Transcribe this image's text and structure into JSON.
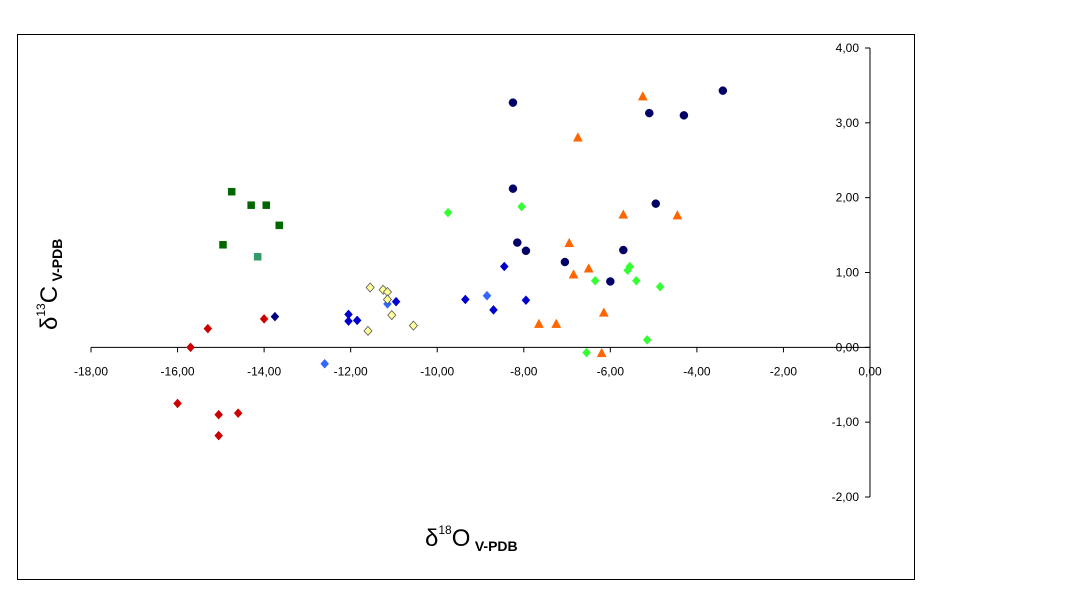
{
  "chart_data": {
    "type": "scatter",
    "title": "",
    "xlabel": {
      "symbol": "δ",
      "sup": "18",
      "element": "O",
      "sub": "V-PDB"
    },
    "ylabel": {
      "symbol": "δ",
      "sup": "13",
      "element": "C",
      "sub": "V-PDB"
    },
    "xlim": [
      -18,
      0
    ],
    "ylim": [
      -2,
      4
    ],
    "x_ticks": [
      -18,
      -16,
      -14,
      -12,
      -10,
      -8,
      -6,
      -4,
      -2,
      0
    ],
    "y_ticks": [
      -2,
      -1,
      0,
      1,
      2,
      3,
      4
    ],
    "x_tick_labels": [
      "-18,00",
      "-16,00",
      "-14,00",
      "-12,00",
      "-10,00",
      "-8,00",
      "-6,00",
      "-4,00",
      "-2,00",
      "0,00"
    ],
    "y_tick_labels": [
      "-2,00",
      "-1,00",
      "0,00",
      "1,00",
      "2,00",
      "3,00",
      "4,00"
    ],
    "grid": false,
    "legend": "none",
    "series": [
      {
        "marker": "square",
        "color": "#006600",
        "points": [
          [
            -14.75,
            2.08
          ],
          [
            -14.3,
            1.9
          ],
          [
            -13.95,
            1.9
          ],
          [
            -13.65,
            1.63
          ],
          [
            -14.95,
            1.37
          ]
        ]
      },
      {
        "marker": "square",
        "color": "#339966",
        "points": [
          [
            -14.15,
            1.21
          ]
        ]
      },
      {
        "marker": "diamond",
        "color": "#cc0000",
        "points": [
          [
            -15.3,
            0.25
          ],
          [
            -14.0,
            0.38
          ],
          [
            -15.7,
            0.0
          ],
          [
            -16.0,
            -0.75
          ],
          [
            -15.05,
            -0.9
          ],
          [
            -14.6,
            -0.88
          ],
          [
            -15.05,
            -1.18
          ]
        ]
      },
      {
        "marker": "diamond",
        "color": "#000080",
        "points": [
          [
            -13.75,
            0.41
          ]
        ]
      },
      {
        "marker": "diamond",
        "color": "#0000cc",
        "points": [
          [
            -12.05,
            0.44
          ],
          [
            -12.05,
            0.35
          ],
          [
            -11.85,
            0.36
          ],
          [
            -10.95,
            0.61
          ],
          [
            -9.35,
            0.64
          ],
          [
            -8.7,
            0.5
          ],
          [
            -8.45,
            1.08
          ],
          [
            -7.95,
            0.63
          ]
        ]
      },
      {
        "marker": "diamond",
        "color": "#3366ff",
        "points": [
          [
            -12.6,
            -0.22
          ],
          [
            -8.85,
            0.69
          ],
          [
            -11.15,
            0.58
          ]
        ]
      },
      {
        "marker": "diamond",
        "color": "#ffff99",
        "stroke": "#555555",
        "points": [
          [
            -11.55,
            0.8
          ],
          [
            -11.25,
            0.77
          ],
          [
            -11.15,
            0.74
          ],
          [
            -11.15,
            0.64
          ],
          [
            -11.05,
            0.43
          ],
          [
            -10.55,
            0.29
          ],
          [
            -11.6,
            0.22
          ]
        ]
      },
      {
        "marker": "diamond",
        "color": "#33ff33",
        "points": [
          [
            -9.75,
            1.8
          ],
          [
            -8.05,
            1.88
          ],
          [
            -6.55,
            -0.07
          ],
          [
            -6.35,
            0.89
          ],
          [
            -5.6,
            1.03
          ],
          [
            -5.55,
            1.08
          ],
          [
            -5.4,
            0.89
          ],
          [
            -4.85,
            0.81
          ],
          [
            -5.15,
            0.1
          ]
        ]
      },
      {
        "marker": "triangle",
        "color": "#ff6600",
        "points": [
          [
            -6.75,
            2.8
          ],
          [
            -5.25,
            3.35
          ],
          [
            -5.7,
            1.77
          ],
          [
            -4.45,
            1.76
          ],
          [
            -6.95,
            1.39
          ],
          [
            -6.5,
            1.05
          ],
          [
            -6.85,
            0.97
          ],
          [
            -7.65,
            0.31
          ],
          [
            -7.25,
            0.31
          ],
          [
            -6.15,
            0.46
          ],
          [
            -6.2,
            -0.08
          ]
        ]
      },
      {
        "marker": "circle",
        "color": "#000066",
        "points": [
          [
            -8.25,
            3.27
          ],
          [
            -3.4,
            3.43
          ],
          [
            -5.1,
            3.13
          ],
          [
            -4.3,
            3.1
          ],
          [
            -8.25,
            2.12
          ],
          [
            -4.95,
            1.92
          ],
          [
            -8.15,
            1.4
          ],
          [
            -7.95,
            1.29
          ],
          [
            -7.05,
            1.14
          ],
          [
            -5.7,
            1.3
          ],
          [
            -6.0,
            0.88
          ]
        ]
      }
    ]
  }
}
